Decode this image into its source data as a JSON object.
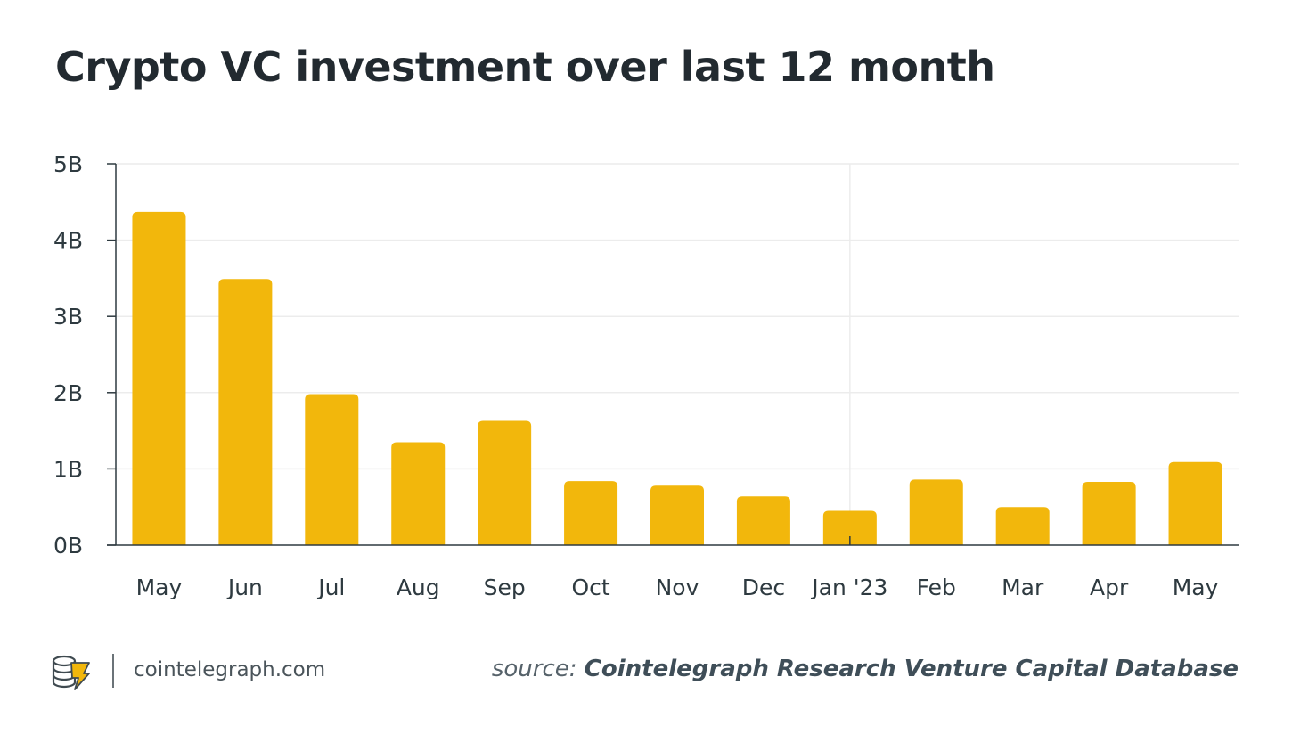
{
  "header": {
    "title": "Crypto VC investment over last 12 month"
  },
  "chart_data": {
    "type": "bar",
    "title": "Crypto VC investment over last 12 month",
    "categories": [
      "May",
      "Jun",
      "Jul",
      "Aug",
      "Sep",
      "Oct",
      "Nov",
      "Dec",
      "Jan '23",
      "Feb",
      "Mar",
      "Apr",
      "May"
    ],
    "values": [
      4.37,
      3.49,
      1.98,
      1.35,
      1.63,
      0.84,
      0.78,
      0.64,
      0.45,
      0.86,
      0.5,
      0.83,
      1.09
    ],
    "unit": "B",
    "ylim": [
      0,
      5
    ],
    "yticks": [
      "0B",
      "1B",
      "2B",
      "3B",
      "4B",
      "5B"
    ],
    "xlabel": "",
    "ylabel": "",
    "grid": true,
    "bar_color": "#f2b70c",
    "year_marker_category": "Jan '23"
  },
  "footer": {
    "site": "cointelegraph.com",
    "source_label": "source:",
    "source_name": "Cointelegraph Research Venture Capital Database",
    "logo_icon": "cointelegraph-logo-icon"
  }
}
